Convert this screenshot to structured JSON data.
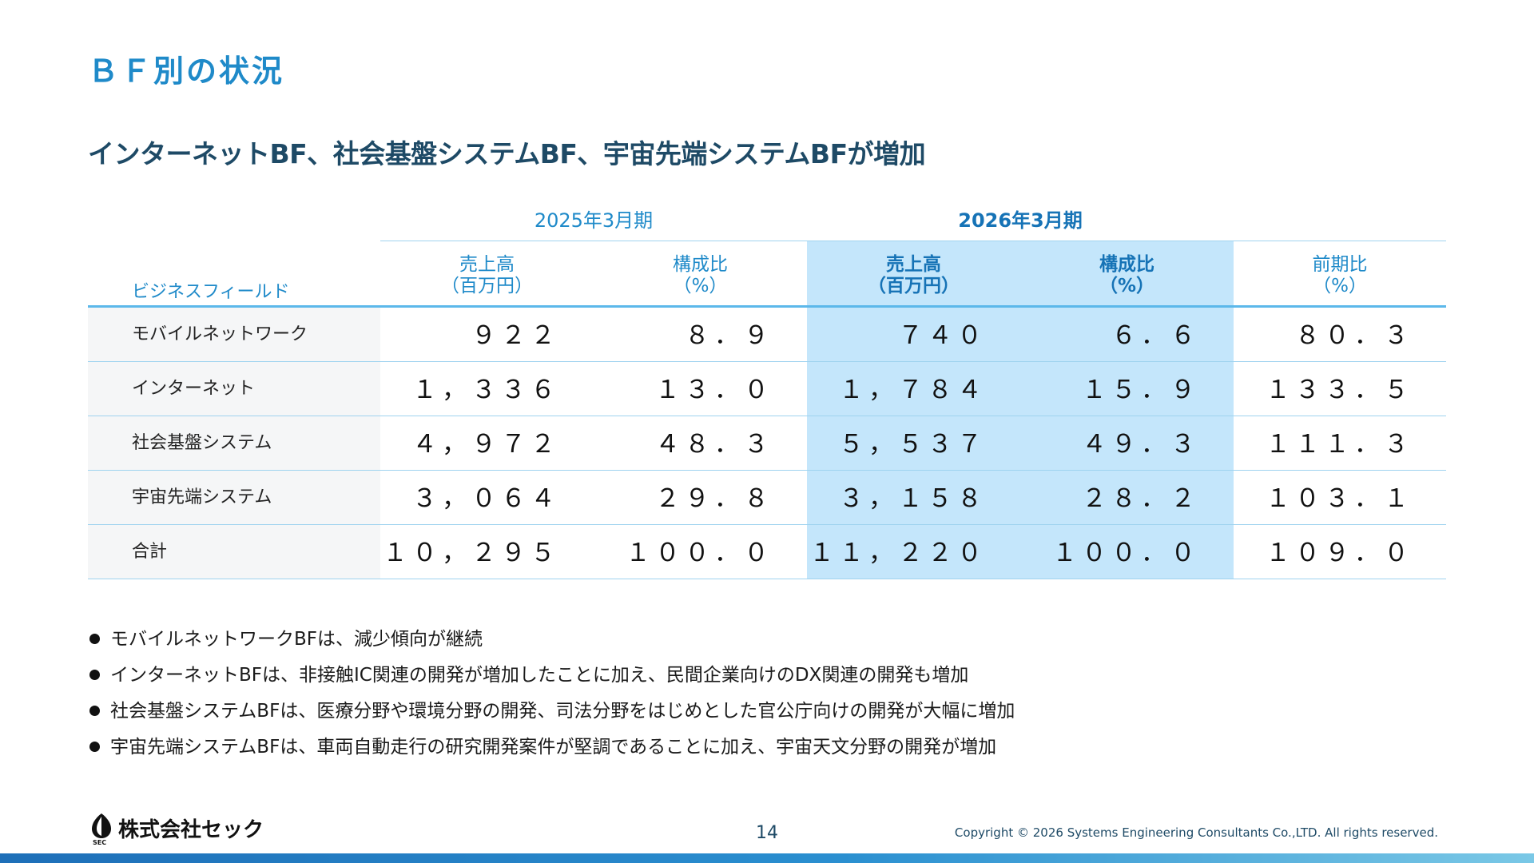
{
  "page": {
    "section_title": "ＢＦ別の状況",
    "headline": "インターネットBF、社会基盤システムBF、宇宙先端システムBFが増加"
  },
  "table": {
    "period_2025": "2025年3月期",
    "period_2026": "2026年3月期",
    "field_header": "ビジネスフィールド",
    "headers": {
      "sales_2025": {
        "line1": "売上高",
        "line2": "（百万円）"
      },
      "ratio_2025": {
        "line1": "構成比",
        "line2": "（%）"
      },
      "sales_2026": {
        "line1": "売上高",
        "line2": "（百万円）"
      },
      "ratio_2026": {
        "line1": "構成比",
        "line2": "（%）"
      },
      "yoy": {
        "line1": "前期比",
        "line2": "（%）"
      }
    },
    "rows": [
      {
        "name": "モバイルネットワーク",
        "sales_2025": "９２２",
        "ratio_2025": "８．９",
        "sales_2026": "７４０",
        "ratio_2026": "６．６",
        "yoy": "８０．３"
      },
      {
        "name": "インターネット",
        "sales_2025": "１，３３６",
        "ratio_2025": "１３．０",
        "sales_2026": "１，７８４",
        "ratio_2026": "１５．９",
        "yoy": "１３３．５"
      },
      {
        "name": "社会基盤システム",
        "sales_2025": "４，９７２",
        "ratio_2025": "４８．３",
        "sales_2026": "５，５３７",
        "ratio_2026": "４９．３",
        "yoy": "１１１．３"
      },
      {
        "name": "宇宙先端システム",
        "sales_2025": "３，０６４",
        "ratio_2025": "２９．８",
        "sales_2026": "３，１５８",
        "ratio_2026": "２８．２",
        "yoy": "１０３．１"
      },
      {
        "name": "合計",
        "sales_2025": "１０，２９５",
        "ratio_2025": "１００．０",
        "sales_2026": "１１，２２０",
        "ratio_2026": "１００．０",
        "yoy": "１０９．０"
      }
    ]
  },
  "bullets": [
    "モバイルネットワークBFは、減少傾向が継続",
    "インターネットBFは、非接触IC関連の開発が増加したことに加え、民間企業向けのDX関連の開発も増加",
    "社会基盤システムBFは、医療分野や環境分野の開発、司法分野をはじめとした官公庁向けの開発が大幅に増加",
    "宇宙先端システムBFは、車両自動走行の研究開発案件が堅調であることに加え、宇宙天文分野の開発が増加"
  ],
  "footer": {
    "logo_text": "株式会社セック",
    "logo_small": "SEC",
    "page_number": "14",
    "copyright": "Copyright © 2026 Systems Engineering Consultants Co.,LTD. All rights reserved."
  },
  "colors": {
    "accent": "#1f8ac9",
    "headline": "#1e4a66",
    "highlight": "#c4e6fb"
  }
}
